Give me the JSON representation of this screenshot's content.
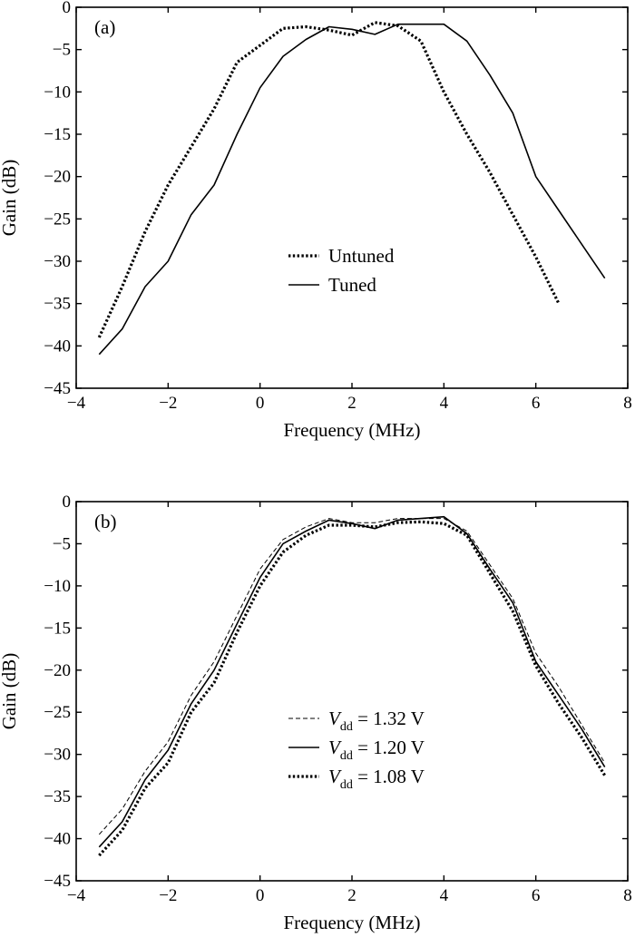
{
  "chart_data": [
    {
      "type": "line",
      "panel_label": "(a)",
      "xlabel": "Frequency (MHz)",
      "ylabel": "Gain (dB)",
      "xlim": [
        -4,
        8
      ],
      "ylim": [
        -45,
        0
      ],
      "xticks": [
        "−4",
        "−2",
        "0",
        "2",
        "4",
        "6",
        "8"
      ],
      "yticks": [
        "0",
        "−5",
        "−10",
        "−15",
        "−20",
        "−25",
        "−30",
        "−35",
        "−40",
        "−45"
      ],
      "grid": false,
      "legend_position": "center",
      "series": [
        {
          "name": "Untuned",
          "style": "dotted",
          "color": "#000000",
          "x": [
            -3.5,
            -3,
            -2.5,
            -2,
            -1.5,
            -1,
            -0.5,
            0,
            0.5,
            1,
            1.5,
            2,
            2.5,
            3,
            3.5,
            4,
            4.5,
            5,
            5.5,
            6,
            6.5
          ],
          "y": [
            -39,
            -33,
            -26.5,
            -21,
            -16.5,
            -12,
            -6.5,
            -4.5,
            -2.5,
            -2.3,
            -2.7,
            -3.3,
            -1.8,
            -2.2,
            -4,
            -10,
            -15,
            -19.5,
            -24.5,
            -29.5,
            -35
          ]
        },
        {
          "name": "Tuned",
          "style": "solid",
          "color": "#000000",
          "x": [
            -3.5,
            -3,
            -2.5,
            -2,
            -1.5,
            -1,
            -0.5,
            0,
            0.5,
            1,
            1.5,
            2,
            2.5,
            3,
            3.5,
            4,
            4.5,
            5,
            5.5,
            6,
            6.5,
            7,
            7.5
          ],
          "y": [
            -41,
            -38,
            -33,
            -30,
            -24.5,
            -21,
            -15,
            -9.5,
            -5.8,
            -3.8,
            -2.3,
            -2.6,
            -3.2,
            -2,
            -2,
            -2,
            -4,
            -8,
            -12.5,
            -20,
            -24,
            -28,
            -32
          ]
        }
      ]
    },
    {
      "type": "line",
      "panel_label": "(b)",
      "xlabel": "Frequency (MHz)",
      "ylabel": "Gain (dB)",
      "xlim": [
        -4,
        8
      ],
      "ylim": [
        -45,
        0
      ],
      "xticks": [
        "−4",
        "−2",
        "0",
        "2",
        "4",
        "6",
        "8"
      ],
      "yticks": [
        "0",
        "−5",
        "−10",
        "−15",
        "−20",
        "−25",
        "−30",
        "−35",
        "−40",
        "−45"
      ],
      "grid": false,
      "legend_position": "center",
      "series": [
        {
          "name": "V",
          "name_sub": "dd",
          "name_value": " = 1.32 V",
          "style": "thin-dashed",
          "color": "#000000",
          "x": [
            -3.5,
            -3,
            -2.5,
            -2,
            -1.5,
            -1,
            -0.5,
            0,
            0.5,
            1,
            1.5,
            2,
            2.5,
            3,
            3.5,
            4,
            4.5,
            5,
            5.5,
            6,
            6.5,
            7,
            7.5
          ],
          "y": [
            -39.5,
            -36.5,
            -32,
            -28.5,
            -23,
            -19,
            -13.5,
            -8,
            -4.5,
            -3,
            -2,
            -2.5,
            -2.5,
            -2,
            -2,
            -2,
            -3.5,
            -7.5,
            -11.5,
            -18,
            -22,
            -26.5,
            -31
          ]
        },
        {
          "name": "V",
          "name_sub": "dd",
          "name_value": " = 1.20 V",
          "style": "solid",
          "color": "#000000",
          "x": [
            -3.5,
            -3,
            -2.5,
            -2,
            -1.5,
            -1,
            -0.5,
            0,
            0.5,
            1,
            1.5,
            2,
            2.5,
            3,
            3.5,
            4,
            4.5,
            5,
            5.5,
            6,
            6.5,
            7,
            7.5
          ],
          "y": [
            -41,
            -38,
            -33,
            -29.5,
            -24,
            -20,
            -14.5,
            -9,
            -5,
            -3.5,
            -2.2,
            -2.6,
            -3.2,
            -2.2,
            -2,
            -1.8,
            -3.8,
            -8,
            -12,
            -19,
            -23,
            -27,
            -31.5
          ]
        },
        {
          "name": "V",
          "name_sub": "dd",
          "name_value": " = 1.08 V",
          "style": "dotted",
          "color": "#000000",
          "x": [
            -3.5,
            -3,
            -2.5,
            -2,
            -1.5,
            -1,
            -0.5,
            0,
            0.5,
            1,
            1.5,
            2,
            2.5,
            3,
            3.5,
            4,
            4.5,
            5,
            5.5,
            6,
            6.5,
            7,
            7.5
          ],
          "y": [
            -42,
            -39,
            -34,
            -31,
            -25,
            -21.5,
            -15.5,
            -10,
            -6,
            -4,
            -2.8,
            -2.8,
            -3,
            -2.5,
            -2.4,
            -2.6,
            -4,
            -8.5,
            -13,
            -19.5,
            -24,
            -28,
            -32.5
          ]
        }
      ]
    }
  ]
}
